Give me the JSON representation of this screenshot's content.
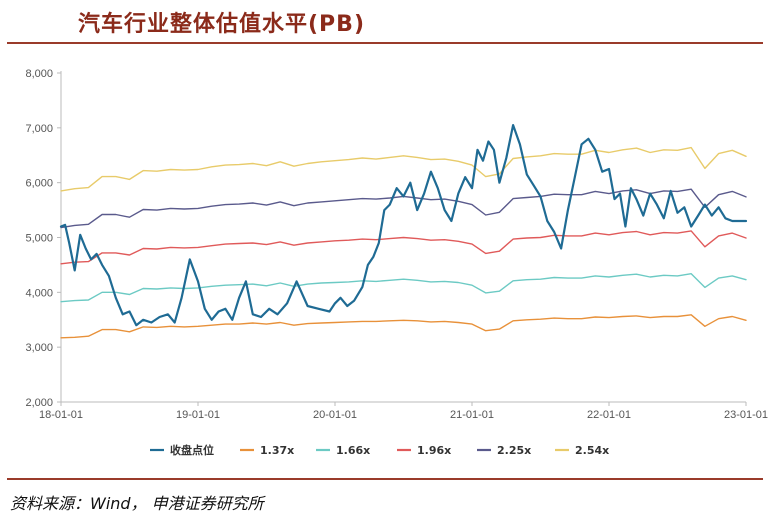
{
  "title": "汽车行业整体估值水平(PB)",
  "source": "资料来源：Wind， 申港证券研究所",
  "chart_data": {
    "type": "line",
    "ylim": [
      2000,
      8000
    ],
    "yticks": [
      "2,000",
      "3,000",
      "4,000",
      "5,000",
      "6,000",
      "7,000",
      "8,000"
    ],
    "xticks": [
      "18-01-01",
      "19-01-01",
      "20-01-01",
      "21-01-01",
      "22-01-01",
      "23-01-01"
    ],
    "xrange": [
      "2018-01-01",
      "2023-01-01"
    ],
    "grid": false,
    "legend_position": "bottom",
    "series": [
      {
        "name": "收盘点位",
        "color": "#1f6b94",
        "width": 2.2,
        "x": [
          2018.0,
          2018.03,
          2018.06,
          2018.1,
          2018.14,
          2018.18,
          2018.22,
          2018.26,
          2018.3,
          2018.35,
          2018.4,
          2018.45,
          2018.5,
          2018.55,
          2018.6,
          2018.66,
          2018.72,
          2018.78,
          2018.83,
          2018.88,
          2018.94,
          2019.0,
          2019.05,
          2019.1,
          2019.15,
          2019.2,
          2019.25,
          2019.3,
          2019.35,
          2019.4,
          2019.46,
          2019.52,
          2019.58,
          2019.65,
          2019.72,
          2019.8,
          2019.88,
          2019.96,
          2020.0,
          2020.04,
          2020.09,
          2020.14,
          2020.2,
          2020.24,
          2020.28,
          2020.32,
          2020.36,
          2020.4,
          2020.45,
          2020.5,
          2020.55,
          2020.6,
          2020.65,
          2020.7,
          2020.75,
          2020.8,
          2020.85,
          2020.9,
          2020.95,
          2021.0,
          2021.04,
          2021.08,
          2021.12,
          2021.16,
          2021.2,
          2021.25,
          2021.3,
          2021.35,
          2021.4,
          2021.45,
          2021.5,
          2021.55,
          2021.6,
          2021.65,
          2021.7,
          2021.75,
          2021.8,
          2021.85,
          2021.9,
          2021.95,
          2022.0,
          2022.04,
          2022.08,
          2022.12,
          2022.16,
          2022.2,
          2022.25,
          2022.3,
          2022.35,
          2022.4,
          2022.45,
          2022.5,
          2022.55,
          2022.6,
          2022.65,
          2022.7,
          2022.75,
          2022.8,
          2022.85,
          2022.9,
          2022.95,
          2023.0
        ],
        "y": [
          5200,
          5230,
          4900,
          4400,
          5050,
          4800,
          4600,
          4700,
          4500,
          4300,
          3900,
          3600,
          3650,
          3400,
          3500,
          3450,
          3550,
          3600,
          3450,
          3900,
          4600,
          4200,
          3700,
          3500,
          3650,
          3700,
          3500,
          3900,
          4200,
          3600,
          3550,
          3700,
          3600,
          3800,
          4200,
          3750,
          3700,
          3650,
          3800,
          3900,
          3750,
          3850,
          4100,
          4500,
          4650,
          4900,
          5500,
          5600,
          5900,
          5750,
          6000,
          5500,
          5800,
          6200,
          5900,
          5500,
          5300,
          5800,
          6100,
          5900,
          6600,
          6400,
          6750,
          6600,
          6000,
          6450,
          7050,
          6700,
          6150,
          5950,
          5750,
          5300,
          5100,
          4800,
          5500,
          6100,
          6700,
          6800,
          6600,
          6200,
          6250,
          5700,
          5800,
          5200,
          5900,
          5700,
          5400,
          5800,
          5600,
          5350,
          5850,
          5450,
          5550,
          5200,
          5400,
          5600,
          5400,
          5550,
          5350,
          5300,
          5300,
          5300
        ]
      },
      {
        "name": "1.37x",
        "color": "#e8913a",
        "width": 1.4,
        "x": [
          2018.0,
          2018.1,
          2018.2,
          2018.3,
          2018.4,
          2018.5,
          2018.6,
          2018.7,
          2018.8,
          2018.9,
          2019.0,
          2019.1,
          2019.2,
          2019.3,
          2019.4,
          2019.5,
          2019.6,
          2019.7,
          2019.8,
          2019.9,
          2020.0,
          2020.1,
          2020.2,
          2020.3,
          2020.4,
          2020.5,
          2020.6,
          2020.7,
          2020.8,
          2020.9,
          2021.0,
          2021.1,
          2021.2,
          2021.3,
          2021.4,
          2021.5,
          2021.6,
          2021.7,
          2021.8,
          2021.9,
          2022.0,
          2022.1,
          2022.2,
          2022.3,
          2022.4,
          2022.5,
          2022.6,
          2022.7,
          2022.8,
          2022.9,
          2023.0
        ],
        "y": [
          3170,
          3180,
          3200,
          3320,
          3320,
          3280,
          3370,
          3360,
          3380,
          3370,
          3380,
          3400,
          3420,
          3420,
          3440,
          3420,
          3450,
          3400,
          3430,
          3440,
          3450,
          3460,
          3470,
          3470,
          3480,
          3490,
          3480,
          3460,
          3470,
          3450,
          3420,
          3300,
          3330,
          3480,
          3500,
          3510,
          3530,
          3520,
          3520,
          3550,
          3540,
          3560,
          3570,
          3540,
          3560,
          3560,
          3590,
          3380,
          3520,
          3560,
          3490
        ]
      },
      {
        "name": "1.66x",
        "color": "#6ccac4",
        "width": 1.4,
        "x": [
          2018.0,
          2018.1,
          2018.2,
          2018.3,
          2018.4,
          2018.5,
          2018.6,
          2018.7,
          2018.8,
          2018.9,
          2019.0,
          2019.1,
          2019.2,
          2019.3,
          2019.4,
          2019.5,
          2019.6,
          2019.7,
          2019.8,
          2019.9,
          2020.0,
          2020.1,
          2020.2,
          2020.3,
          2020.4,
          2020.5,
          2020.6,
          2020.7,
          2020.8,
          2020.9,
          2021.0,
          2021.1,
          2021.2,
          2021.3,
          2021.4,
          2021.5,
          2021.6,
          2021.7,
          2021.8,
          2021.9,
          2022.0,
          2022.1,
          2022.2,
          2022.3,
          2022.4,
          2022.5,
          2022.6,
          2022.7,
          2022.8,
          2022.9,
          2023.0
        ],
        "y": [
          3830,
          3850,
          3860,
          4000,
          4000,
          3960,
          4070,
          4060,
          4080,
          4070,
          4080,
          4110,
          4130,
          4140,
          4150,
          4120,
          4170,
          4110,
          4150,
          4170,
          4180,
          4190,
          4210,
          4200,
          4220,
          4240,
          4220,
          4190,
          4200,
          4180,
          4130,
          3990,
          4020,
          4210,
          4230,
          4240,
          4270,
          4260,
          4260,
          4300,
          4280,
          4310,
          4330,
          4280,
          4310,
          4300,
          4340,
          4090,
          4260,
          4300,
          4230
        ]
      },
      {
        "name": "1.96x",
        "color": "#e05a5a",
        "width": 1.4,
        "x": [
          2018.0,
          2018.1,
          2018.2,
          2018.3,
          2018.4,
          2018.5,
          2018.6,
          2018.7,
          2018.8,
          2018.9,
          2019.0,
          2019.1,
          2019.2,
          2019.3,
          2019.4,
          2019.5,
          2019.6,
          2019.7,
          2019.8,
          2019.9,
          2020.0,
          2020.1,
          2020.2,
          2020.3,
          2020.4,
          2020.5,
          2020.6,
          2020.7,
          2020.8,
          2020.9,
          2021.0,
          2021.1,
          2021.2,
          2021.3,
          2021.4,
          2021.5,
          2021.6,
          2021.7,
          2021.8,
          2021.9,
          2022.0,
          2022.1,
          2022.2,
          2022.3,
          2022.4,
          2022.5,
          2022.6,
          2022.7,
          2022.8,
          2022.9,
          2023.0
        ],
        "y": [
          4520,
          4550,
          4560,
          4720,
          4720,
          4680,
          4800,
          4790,
          4820,
          4810,
          4820,
          4850,
          4880,
          4890,
          4900,
          4870,
          4920,
          4860,
          4900,
          4920,
          4940,
          4950,
          4970,
          4960,
          4980,
          5000,
          4980,
          4950,
          4960,
          4930,
          4880,
          4710,
          4750,
          4970,
          4990,
          5000,
          5040,
          5030,
          5030,
          5080,
          5050,
          5090,
          5110,
          5050,
          5090,
          5080,
          5120,
          4830,
          5030,
          5080,
          4990
        ]
      },
      {
        "name": "2.25x",
        "color": "#5a5a8c",
        "width": 1.4,
        "x": [
          2018.0,
          2018.1,
          2018.2,
          2018.3,
          2018.4,
          2018.5,
          2018.6,
          2018.7,
          2018.8,
          2018.9,
          2019.0,
          2019.1,
          2019.2,
          2019.3,
          2019.4,
          2019.5,
          2019.6,
          2019.7,
          2019.8,
          2019.9,
          2020.0,
          2020.1,
          2020.2,
          2020.3,
          2020.4,
          2020.5,
          2020.6,
          2020.7,
          2020.8,
          2020.9,
          2021.0,
          2021.1,
          2021.2,
          2021.3,
          2021.4,
          2021.5,
          2021.6,
          2021.7,
          2021.8,
          2021.9,
          2022.0,
          2022.1,
          2022.2,
          2022.3,
          2022.4,
          2022.5,
          2022.6,
          2022.7,
          2022.8,
          2022.9,
          2023.0
        ],
        "y": [
          5180,
          5220,
          5240,
          5420,
          5420,
          5370,
          5510,
          5500,
          5530,
          5520,
          5530,
          5570,
          5600,
          5610,
          5630,
          5590,
          5650,
          5580,
          5630,
          5650,
          5670,
          5690,
          5710,
          5700,
          5720,
          5750,
          5720,
          5690,
          5700,
          5660,
          5600,
          5410,
          5460,
          5710,
          5730,
          5750,
          5790,
          5780,
          5780,
          5840,
          5800,
          5850,
          5870,
          5800,
          5850,
          5840,
          5880,
          5550,
          5780,
          5840,
          5740
        ]
      },
      {
        "name": "2.54x",
        "color": "#e8cb6a",
        "width": 1.4,
        "x": [
          2018.0,
          2018.1,
          2018.2,
          2018.3,
          2018.4,
          2018.5,
          2018.6,
          2018.7,
          2018.8,
          2018.9,
          2019.0,
          2019.1,
          2019.2,
          2019.3,
          2019.4,
          2019.5,
          2019.6,
          2019.7,
          2019.8,
          2019.9,
          2020.0,
          2020.1,
          2020.2,
          2020.3,
          2020.4,
          2020.5,
          2020.6,
          2020.7,
          2020.8,
          2020.9,
          2021.0,
          2021.1,
          2021.2,
          2021.3,
          2021.4,
          2021.5,
          2021.6,
          2021.7,
          2021.8,
          2021.9,
          2022.0,
          2022.1,
          2022.2,
          2022.3,
          2022.4,
          2022.5,
          2022.6,
          2022.7,
          2022.8,
          2022.9,
          2023.0
        ],
        "y": [
          5850,
          5890,
          5910,
          6110,
          6110,
          6060,
          6220,
          6210,
          6240,
          6230,
          6240,
          6290,
          6320,
          6330,
          6350,
          6310,
          6380,
          6300,
          6350,
          6380,
          6400,
          6420,
          6450,
          6430,
          6460,
          6490,
          6460,
          6420,
          6430,
          6390,
          6320,
          6110,
          6160,
          6440,
          6470,
          6490,
          6530,
          6520,
          6520,
          6590,
          6550,
          6600,
          6630,
          6550,
          6600,
          6590,
          6640,
          6260,
          6530,
          6590,
          6480
        ]
      }
    ]
  }
}
